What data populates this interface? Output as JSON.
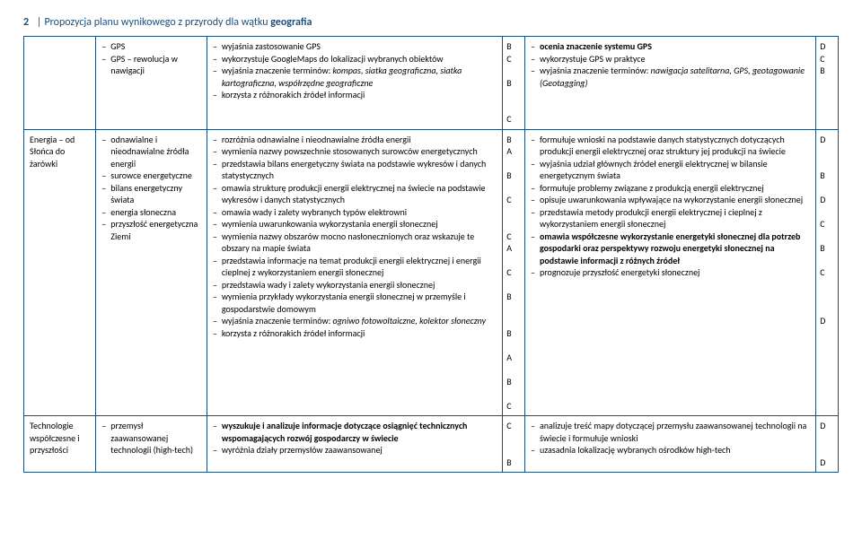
{
  "header": {
    "page_num": "2",
    "divider": "|",
    "title_plain": "Propozycja planu wynikowego z przyrody dla wątku ",
    "title_bold": "geografia"
  },
  "colors": {
    "border": "#1f4e79",
    "header_text": "#1f4e79",
    "body_text": "#000000",
    "background": "#ffffff"
  },
  "rows": [
    {
      "topic": "",
      "sources": [
        "GPS",
        "GPS – rewolucja w nawigacji"
      ],
      "basic": [
        "wyjaśnia zastosowanie GPS",
        "wykorzystuje GoogleMaps do lokalizacji wybranych obiektów",
        "wyjaśnia znaczenie terminów: <em>kompas, siatka geograficzna, siatka kartograficzna, współrzędne geograficzne</em>",
        "korzysta z różnorakich źródeł informacji"
      ],
      "basic_letters": [
        "B",
        "C",
        "",
        "B",
        "",
        "",
        "C"
      ],
      "ext": [
        "<span class='b'>ocenia znaczenie systemu GPS</span>",
        "wykorzystuje GPS w praktyce",
        "wyjaśnia znaczenie terminów: <em>nawigacja satelitarna, GPS, geotagowanie (Geotagging)</em>"
      ],
      "ext_letters": [
        "D",
        "C",
        "B"
      ]
    },
    {
      "topic": "Energia – od Słońca do żarówki",
      "sources": [
        "odnawialne i nieodnawialne źródła energii",
        "surowce energetyczne",
        "bilans energetyczny świata",
        "energia słoneczna",
        "przyszłość energetyczna Ziemi"
      ],
      "basic": [
        "rozróżnia odnawialne i nieodnawialne źródła energii",
        "wymienia nazwy powszechnie stosowanych surowców energetycznych",
        "przedstawia bilans energetyczny świata na podstawie wykresów i danych statystycznych",
        "omawia strukturę produkcji energii elektrycznej na świecie na podstawie wykresów i danych statystycznych",
        "omawia wady i zalety wybranych typów elektrowni",
        "wymienia uwarunkowania wykorzystania energii słonecznej",
        "wymienia nazwy obszarów mocno nasłonecznionych oraz wskazuje te obszary na mapie świata",
        "przedstawia informacje na temat produkcji energii elektrycznej i energii cieplnej z wykorzystaniem energii słonecznej",
        "przedstawia wady i zalety wykorzystania energii słonecznej",
        "wymienia przykłady wykorzystania energii słonecznej w przemyśle i gospodarstwie domowym",
        "wyjaśnia znaczenie terminów: <em>ogniwo fotowoltaiczne, kolektor słoneczny</em>",
        "korzysta z różnorakich źródeł informacji"
      ],
      "basic_letters": [
        "B",
        "A",
        "",
        "B",
        "",
        "C",
        "",
        "",
        "C",
        "A",
        "",
        "C",
        "",
        "B",
        "",
        "",
        "B",
        "",
        "A",
        "",
        "B",
        "",
        "C"
      ],
      "ext": [
        "formułuje wnioski na podstawie danych statystycznych dotyczących produkcji energii elektrycznej oraz struktury jej produkcji na świecie",
        "wyjaśnia udział głównych źródeł energii elektrycznej w bilansie energetycznym świata",
        "formułuje problemy związane z produkcją energii elektrycznej",
        "opisuje uwarunkowania wpływające na wykorzystanie energii słonecznej",
        "przedstawia metody produkcji energii elektrycznej i cieplnej z wykorzystaniem energii słonecznej",
        "<span class='b'>omawia współczesne wykorzystanie energetyki słonecznej dla potrzeb gospodarki oraz perspektywy rozwoju energetyki słonecznej na podstawie informacji z różnych źródeł</span>",
        "prognozuje przyszłość energetyki słonecznej"
      ],
      "ext_letters": [
        "D",
        "",
        "",
        "B",
        "",
        "D",
        "",
        "C",
        "",
        "B",
        "",
        "C",
        "",
        "",
        "",
        "D"
      ]
    },
    {
      "topic": "Technologie współczesne i przyszłości",
      "sources": [
        "przemysł zaawansowanej technologii (high-tech)"
      ],
      "basic": [
        "<span class='b'>wyszukuje i analizuje informacje dotyczące osiągnięć technicznych wspomagających rozwój gospodarczy w świecie</span>",
        "wyróżnia działy przemysłów zaawansowanej"
      ],
      "basic_letters": [
        "C",
        "",
        "",
        "B"
      ],
      "ext": [
        "analizuje treść mapy dotyczącej przemysłu zaawansowanej technologii na świecie i formułuje wnioski",
        "uzasadnia lokalizację wybranych ośrodków high-tech"
      ],
      "ext_letters": [
        "D",
        "",
        "",
        "D"
      ]
    }
  ]
}
